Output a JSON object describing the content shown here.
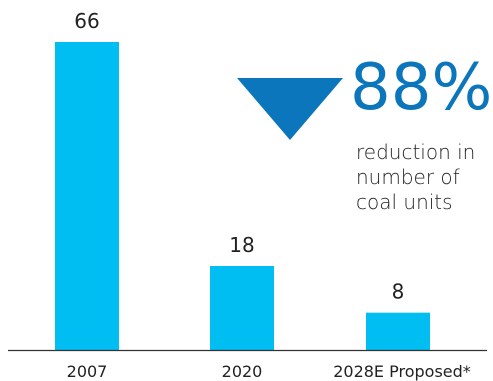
{
  "chart_data": {
    "type": "bar",
    "categories": [
      "2007",
      "2020",
      "2028E Proposed*"
    ],
    "values": [
      66,
      18,
      8
    ],
    "data_labels": [
      "66",
      "18",
      "8"
    ],
    "ylim": [
      0,
      66
    ],
    "grid": false,
    "bar_color": "#00bdf2",
    "axis_color": "#333333",
    "label_color": "#222222"
  },
  "callout": {
    "percent": "88%",
    "text": "reduction in number of coal units",
    "color": "#0b76bb",
    "icon": "down-triangle-icon"
  }
}
